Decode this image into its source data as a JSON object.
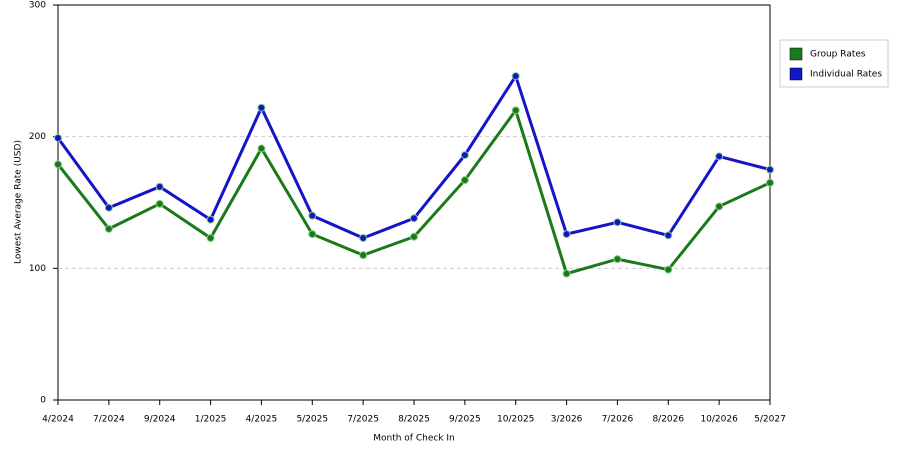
{
  "chart_data": {
    "type": "line",
    "x_label": "Month of Check In",
    "y_label": "Lowest Average Rate (USD)",
    "categories": [
      "4/2024",
      "7/2024",
      "9/2024",
      "1/2025",
      "4/2025",
      "5/2025",
      "7/2025",
      "8/2025",
      "9/2025",
      "10/2025",
      "3/2026",
      "7/2026",
      "8/2026",
      "10/2026",
      "5/2027"
    ],
    "series": [
      {
        "name": "Group Rates",
        "color": "#1a7a1a",
        "values": [
          179,
          130,
          149,
          123,
          191,
          126,
          110,
          124,
          167,
          220,
          96,
          107,
          99,
          147,
          165
        ]
      },
      {
        "name": "Individual Rates",
        "color": "#1414c8",
        "values": [
          199,
          146,
          162,
          137,
          222,
          140,
          123,
          138,
          186,
          246,
          126,
          135,
          125,
          185,
          175
        ]
      }
    ],
    "ylim": [
      0,
      300
    ],
    "yticks": [
      0,
      100,
      200,
      300
    ],
    "grid": true,
    "legend": "top-right"
  }
}
